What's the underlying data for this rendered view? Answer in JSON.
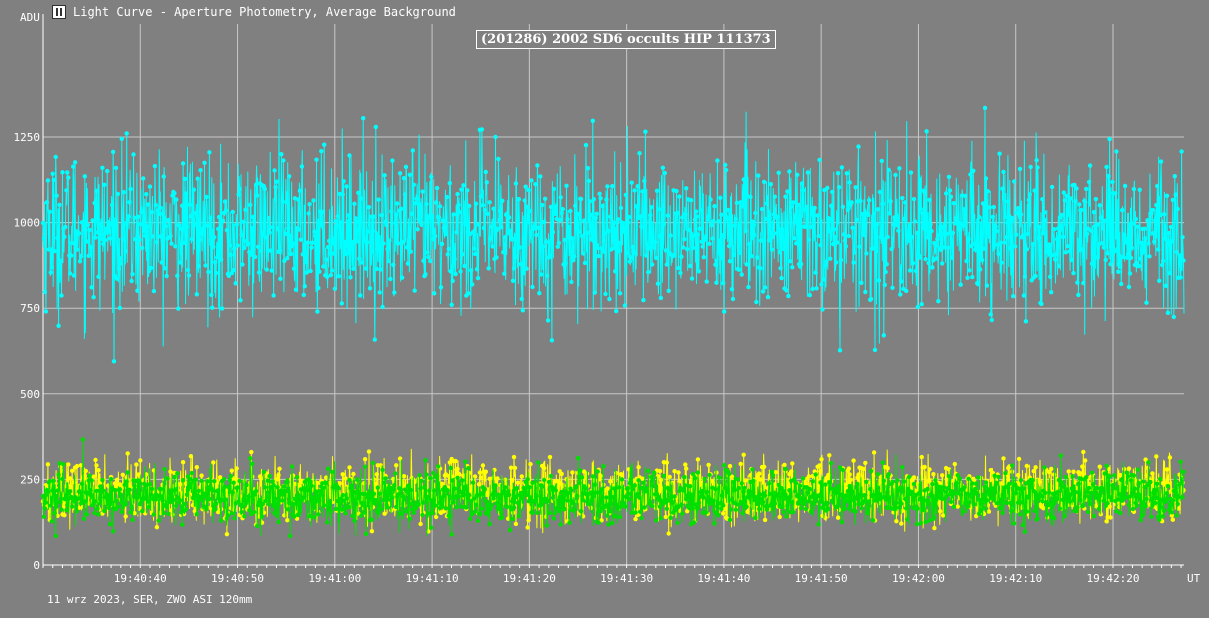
{
  "window": {
    "title": "Light Curve - Aperture Photometry, Average Background",
    "icon": "light-curve-app-icon"
  },
  "footer": {
    "info": "11 wrz 2023, SER, ZWO ASI 120mm"
  },
  "chart_data": {
    "type": "line",
    "title": "(201286) 2002 SD6 occults HIP 111373",
    "ylabel": "ADU",
    "xlabel": "UT",
    "ylim": [
      0,
      1580
    ],
    "y_ticks": [
      "0",
      "250",
      "500",
      "750",
      "1000",
      "1250"
    ],
    "x_ticks": [
      "19:40:40",
      "19:40:50",
      "19:41:00",
      "19:41:10",
      "19:41:20",
      "19:41:30",
      "19:41:40",
      "19:41:50",
      "19:42:00",
      "19:42:10",
      "19:42:20"
    ],
    "x_range": [
      "19:40:30.0",
      "19:42:27.3"
    ],
    "grid": true,
    "series": [
      {
        "color": "#00ffff",
        "mean": 975,
        "stdev": 110,
        "min": 595,
        "max": 1335,
        "points_per_second": 20
      },
      {
        "color": "#ffff00",
        "mean": 215,
        "stdev": 42,
        "min": 90,
        "max": 360,
        "points_per_second": 20
      },
      {
        "color": "#00e000",
        "mean": 198,
        "stdev": 38,
        "min": 85,
        "max": 380,
        "points_per_second": 20
      }
    ]
  }
}
